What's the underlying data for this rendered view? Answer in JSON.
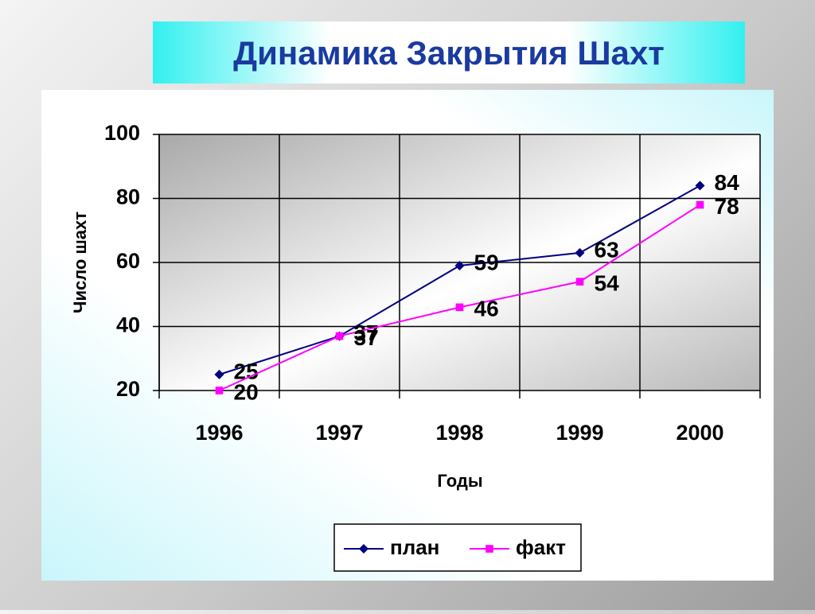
{
  "chart_data": {
    "type": "line",
    "title": "Динамика Закрытия Шахт",
    "x_label": "Годы",
    "y_label": "Число шахт",
    "categories": [
      "1996",
      "1997",
      "1998",
      "1999",
      "2000"
    ],
    "series": [
      {
        "name": "план",
        "color": "#000080",
        "marker": "diamond",
        "values": [
          25,
          37,
          59,
          63,
          84
        ]
      },
      {
        "name": "факт",
        "color": "#ff00ff",
        "marker": "square",
        "values": [
          20,
          37,
          46,
          54,
          78
        ]
      }
    ],
    "ylim": [
      20,
      100
    ],
    "yticks": [
      20,
      40,
      60,
      80,
      100
    ],
    "grid": true
  }
}
